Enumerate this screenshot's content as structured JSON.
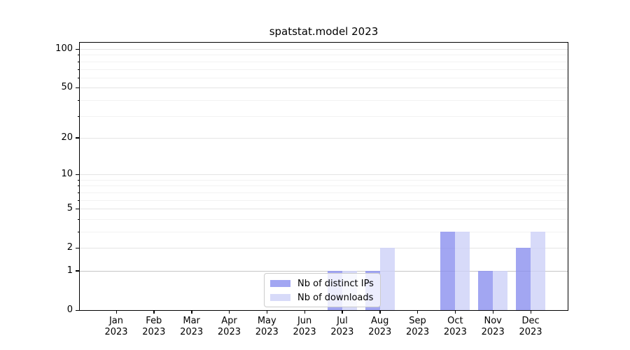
{
  "chart_data": {
    "type": "bar",
    "title": "spatstat.model 2023",
    "months": [
      "Jan",
      "Feb",
      "Mar",
      "Apr",
      "May",
      "Jun",
      "Jul",
      "Aug",
      "Sep",
      "Oct",
      "Nov",
      "Dec"
    ],
    "year": "2023",
    "categories": [
      "Jan 2023",
      "Feb 2023",
      "Mar 2023",
      "Apr 2023",
      "May 2023",
      "Jun 2023",
      "Jul 2023",
      "Aug 2023",
      "Sep 2023",
      "Oct 2023",
      "Nov 2023",
      "Dec 2023"
    ],
    "series": [
      {
        "name": "Nb of distinct IPs",
        "color": "#a2a6f2",
        "values": [
          0,
          0,
          0,
          0,
          0,
          0,
          1,
          1,
          0,
          3,
          1,
          2
        ]
      },
      {
        "name": "Nb of downloads",
        "color": "#d7daf9",
        "values": [
          0,
          0,
          0,
          0,
          0,
          0,
          1,
          2,
          0,
          3,
          1,
          3
        ]
      }
    ],
    "yscale": "log1p",
    "ylim": [
      0,
      112
    ],
    "xlabel": "",
    "ylabel": "",
    "y_major_ticks": [
      0,
      1,
      2,
      5,
      10,
      20,
      50,
      100
    ],
    "y_minor_ticks": [
      3,
      4,
      6,
      7,
      8,
      9,
      30,
      40,
      60,
      70,
      80,
      90
    ],
    "grid": true,
    "legend_position": "lower center"
  },
  "colors": {
    "grid_major": "#e4e4e4",
    "grid_minor": "#f2f2f2",
    "grid_level_one": "#c6c6c6",
    "spine": "#000000",
    "legend_border": "#cccccc"
  }
}
